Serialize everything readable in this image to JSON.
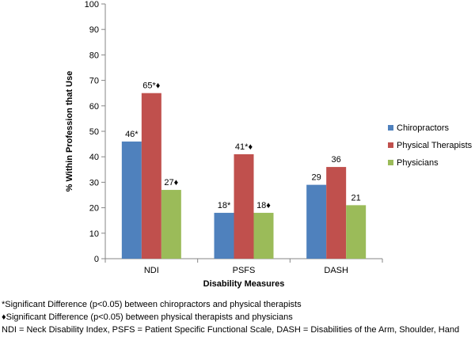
{
  "chart_data": {
    "type": "bar",
    "categories": [
      "NDI",
      "PSFS",
      "DASH"
    ],
    "series": [
      {
        "name": "Chiropractors",
        "values": [
          46,
          18,
          29
        ],
        "labels": [
          "46*",
          "18*",
          "29"
        ],
        "color": "#4F81BD"
      },
      {
        "name": "Physical Therapists",
        "values": [
          65,
          41,
          36
        ],
        "labels": [
          "65*♦",
          "41*♦",
          "36"
        ],
        "color": "#C0504D"
      },
      {
        "name": "Physicians",
        "values": [
          27,
          18,
          21
        ],
        "labels": [
          "27♦",
          "18♦",
          "21"
        ],
        "color": "#9BBB59"
      }
    ],
    "xlabel": "Disability Measures",
    "ylabel": "% Within Profession that Use",
    "ylim": [
      0,
      100
    ],
    "yticks": [
      0,
      10,
      20,
      30,
      40,
      50,
      60,
      70,
      80,
      90,
      100
    ],
    "grid": false,
    "legend": "right"
  },
  "footnotes": [
    "*Significant Difference (p<0.05) between chiropractors and physical therapists",
    "♦Significant Difference (p<0.05) between physical therapists and physicians",
    "NDI = Neck Disability Index, PSFS = Patient Specific Functional Scale, DASH = Disabilities of the Arm, Shoulder, Hand"
  ]
}
